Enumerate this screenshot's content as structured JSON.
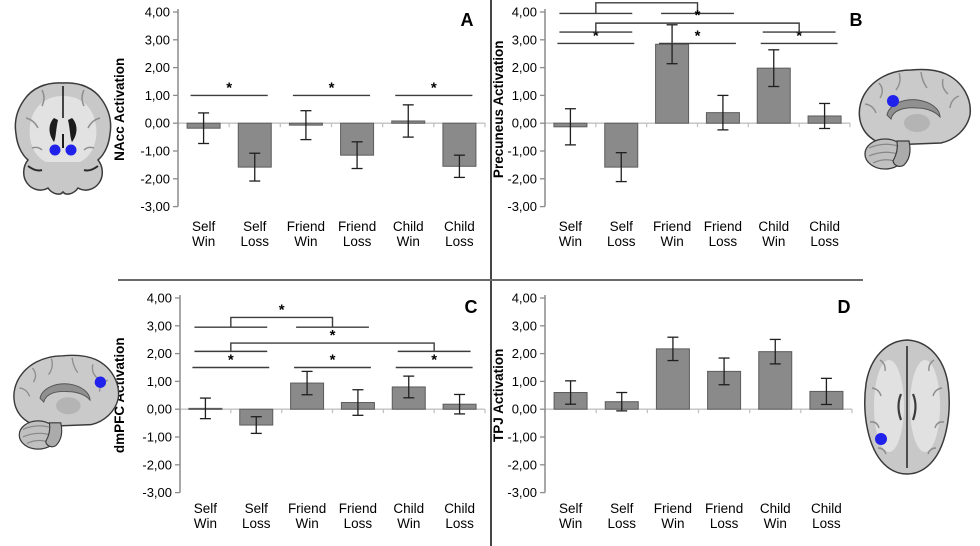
{
  "style": {
    "background": "#ffffff",
    "bar_fill": "#8a8a8a",
    "bar_stroke": "#5c5c5c",
    "axis_color": "#8c8c8c",
    "baseline_color": "#c2c2c2",
    "error_color": "#1f1f1f",
    "sig_color": "#3c3c3c",
    "text_color": "#000000",
    "marker_color": "#2121ec",
    "divider_v_color": "#454545",
    "divider_h_color": "#6a6a6a"
  },
  "chart_data": [
    {
      "panel_label": "A",
      "type": "bar",
      "ylabel": "NAcc Activation",
      "ylim": [
        -3,
        4
      ],
      "ytick_labels": [
        "4,00",
        "3,00",
        "2,00",
        "1,00",
        "0,00",
        "-1,00",
        "-2,00",
        "-3,00"
      ],
      "categories": [
        [
          "Self",
          "Win"
        ],
        [
          "Self",
          "Loss"
        ],
        [
          "Friend",
          "Win"
        ],
        [
          "Friend",
          "Loss"
        ],
        [
          "Child",
          "Win"
        ],
        [
          "Child",
          "Loss"
        ]
      ],
      "values": [
        -0.18,
        -1.58,
        -0.07,
        -1.15,
        0.08,
        -1.55
      ],
      "errors": [
        0.55,
        0.5,
        0.52,
        0.48,
        0.58,
        0.4
      ],
      "sig_pairs": [
        {
          "a": 0,
          "b": 1,
          "y": 1.0,
          "label": "*"
        },
        {
          "a": 2,
          "b": 3,
          "y": 1.0,
          "label": "*"
        },
        {
          "a": 4,
          "b": 5,
          "y": 1.0,
          "label": "*"
        }
      ],
      "sig_bridges": []
    },
    {
      "panel_label": "B",
      "type": "bar",
      "ylabel": "Precuneus Activation",
      "ylim": [
        -3,
        4
      ],
      "ytick_labels": [
        "4,00",
        "3,00",
        "2,00",
        "1,00",
        "0,00",
        "-1,00",
        "-2,00",
        "-3,00"
      ],
      "categories": [
        [
          "Self",
          "Win"
        ],
        [
          "Self",
          "Loss"
        ],
        [
          "Friend",
          "Win"
        ],
        [
          "Friend",
          "Loss"
        ],
        [
          "Child",
          "Win"
        ],
        [
          "Child",
          "Loss"
        ]
      ],
      "values": [
        -0.13,
        -1.58,
        2.84,
        0.38,
        1.98,
        0.26
      ],
      "errors": [
        0.65,
        0.52,
        0.7,
        0.62,
        0.66,
        0.45
      ],
      "sig_pairs": [
        {
          "a": 0,
          "b": 1,
          "y": 2.87,
          "label": "*"
        },
        {
          "a": 2,
          "b": 3,
          "y": 2.87,
          "label": "*"
        },
        {
          "a": 4,
          "b": 5,
          "y": 2.87,
          "label": "*"
        }
      ],
      "sig_bridges": [
        {
          "a": [
            0,
            1
          ],
          "b": [
            2,
            3
          ],
          "pair_y": 3.95,
          "bridge_y": 4.33,
          "label": "*"
        },
        {
          "a": [
            0,
            1
          ],
          "b": [
            4,
            5
          ],
          "pair_y": 3.28,
          "bridge_y": 3.6,
          "label": "*"
        }
      ]
    },
    {
      "panel_label": "C",
      "type": "bar",
      "ylabel": "dmPFC Activation",
      "ylim": [
        -3,
        4
      ],
      "ytick_labels": [
        "4,00",
        "3,00",
        "2,00",
        "1,00",
        "0,00",
        "-1,00",
        "-2,00",
        "-3,00"
      ],
      "categories": [
        [
          "Self",
          "Win"
        ],
        [
          "Self",
          "Loss"
        ],
        [
          "Friend",
          "Win"
        ],
        [
          "Friend",
          "Loss"
        ],
        [
          "Child",
          "Win"
        ],
        [
          "Child",
          "Loss"
        ]
      ],
      "values": [
        0.03,
        -0.57,
        0.94,
        0.24,
        0.8,
        0.18
      ],
      "errors": [
        0.37,
        0.3,
        0.42,
        0.46,
        0.39,
        0.35
      ],
      "sig_pairs": [
        {
          "a": 0,
          "b": 1,
          "y": 1.5,
          "label": "*"
        },
        {
          "a": 2,
          "b": 3,
          "y": 1.5,
          "label": "*"
        },
        {
          "a": 4,
          "b": 5,
          "y": 1.5,
          "label": "*"
        }
      ],
      "sig_bridges": [
        {
          "a": [
            0,
            1
          ],
          "b": [
            2,
            3
          ],
          "pair_y": 2.95,
          "bridge_y": 3.3,
          "label": "*"
        },
        {
          "a": [
            0,
            1
          ],
          "b": [
            4,
            5
          ],
          "pair_y": 2.08,
          "bridge_y": 2.38,
          "label": "*"
        }
      ]
    },
    {
      "panel_label": "D",
      "type": "bar",
      "ylabel": "TPJ Activation",
      "ylim": [
        -3,
        4
      ],
      "ytick_labels": [
        "4,00",
        "3,00",
        "2,00",
        "1,00",
        "0,00",
        "-1,00",
        "-2,00",
        "-3,00"
      ],
      "categories": [
        [
          "Self",
          "Win"
        ],
        [
          "Self",
          "Loss"
        ],
        [
          "Friend",
          "Win"
        ],
        [
          "Friend",
          "Loss"
        ],
        [
          "Child",
          "Win"
        ],
        [
          "Child",
          "Loss"
        ]
      ],
      "values": [
        0.6,
        0.27,
        2.17,
        1.36,
        2.07,
        0.64
      ],
      "errors": [
        0.42,
        0.33,
        0.42,
        0.48,
        0.44,
        0.47
      ],
      "sig_pairs": [],
      "sig_bridges": []
    }
  ],
  "brain_images": [
    {
      "name": "coronal-slice-nacc-image",
      "marker_color": "#2121ec",
      "marker_count": 2
    },
    {
      "name": "sagittal-slice-precuneus-image",
      "marker_color": "#2121ec",
      "marker_count": 1
    },
    {
      "name": "sagittal-slice-dmpfc-image",
      "marker_color": "#2121ec",
      "marker_count": 1
    },
    {
      "name": "axial-slice-tpj-image",
      "marker_color": "#2121ec",
      "marker_count": 1
    }
  ]
}
